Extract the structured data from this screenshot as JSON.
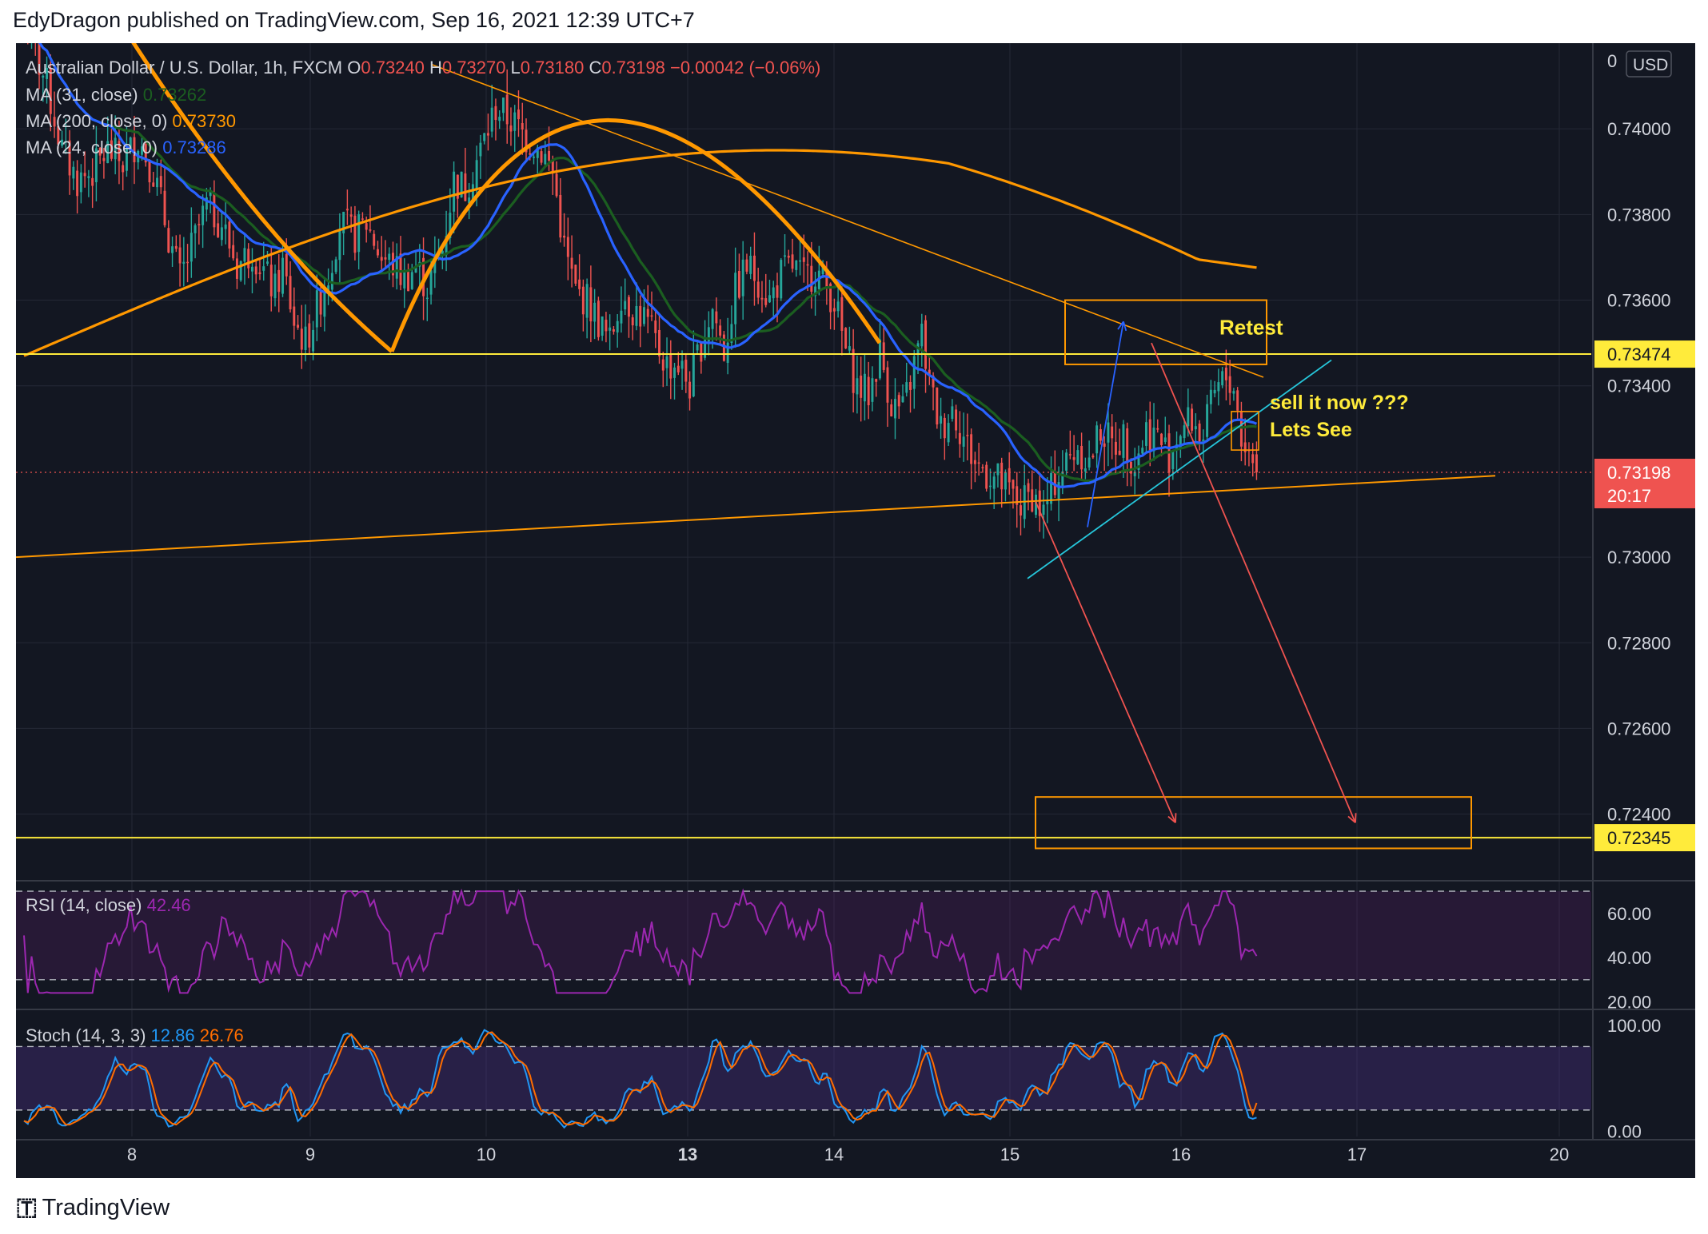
{
  "header": {
    "publisher": "EdyDragon published on TradingView.com, Sep 16, 2021 12:39 UTC+7"
  },
  "footer": {
    "brand": "TradingView",
    "logo_icon": "tradingview-logo-icon"
  },
  "legend": {
    "symbol": "Australian Dollar / U.S. Dollar, 1h, FXCM",
    "o_label": "O",
    "o_value": "0.73240",
    "h_label": "H",
    "h_value": "0.73270",
    "l_label": "L",
    "l_value": "0.73180",
    "c_label": "C",
    "c_value": "0.73198",
    "change": "−0.00042 (−0.06%)",
    "ma1_label": "MA (31, close)",
    "ma1_value": "0.73262",
    "ma2_label": "MA (200, close, 0)",
    "ma2_value": "0.73730",
    "ma3_label": "MA (24, close, 0)",
    "ma3_value": "0.73286"
  },
  "currency": "USD",
  "price_axis": {
    "ticks": [
      "0.74000",
      "0.73800",
      "0.73600",
      "0.73400",
      "0.73000",
      "0.72800",
      "0.72600",
      "0.72400"
    ],
    "tick_values": [
      0.74,
      0.738,
      0.736,
      0.734,
      0.73,
      0.728,
      0.726,
      0.724
    ],
    "top_tick": "0",
    "range": [
      0.7225,
      0.742
    ]
  },
  "badges": {
    "level_high": "0.73474",
    "level_low": "0.72345",
    "last_price": "0.73198",
    "countdown": "20:17"
  },
  "time_axis": {
    "labels": [
      "8",
      "9",
      "10",
      "13",
      "14",
      "15",
      "16",
      "17",
      "20"
    ],
    "bold": [
      "13"
    ]
  },
  "annotations": {
    "retest": "Retest",
    "sell": "sell it now ???",
    "lets_see": "Lets See"
  },
  "rsi": {
    "label": "RSI (14, close)",
    "value": "42.46",
    "ticks": [
      "60.00",
      "40.00",
      "20.00"
    ],
    "tick_values": [
      60,
      40,
      20
    ],
    "range": [
      18,
      74
    ]
  },
  "stoch": {
    "label": "Stoch (14, 3, 3)",
    "k_value": "12.86",
    "d_value": "26.76",
    "ticks": [
      "100.00",
      "0.00"
    ],
    "tick_values": [
      100,
      0
    ],
    "range": [
      -5,
      112
    ]
  },
  "colors": {
    "background": "#131722",
    "up": "#26a69a",
    "down": "#ef5350",
    "ma_fast": "#2962ff",
    "ma_mid": "#1b5e20",
    "ma_slow": "#ff9800",
    "level": "#ffeb3b",
    "rsi": "#9c27b0",
    "stoch_k": "#2196f3",
    "stoch_d": "#ff6d00",
    "annotation_text": "#ffeb3b"
  },
  "chart_data": {
    "type": "candlestick",
    "symbol": "AUDUSD",
    "timeframe": "1h",
    "close_points": [
      [
        0,
        0.7425
      ],
      [
        6,
        0.741
      ],
      [
        10,
        0.7395
      ],
      [
        14,
        0.7388
      ],
      [
        18,
        0.739
      ],
      [
        22,
        0.7395
      ],
      [
        26,
        0.7392
      ],
      [
        30,
        0.7398
      ],
      [
        34,
        0.739
      ],
      [
        38,
        0.7375
      ],
      [
        41,
        0.7365
      ],
      [
        44,
        0.7372
      ],
      [
        48,
        0.7382
      ],
      [
        52,
        0.7378
      ],
      [
        56,
        0.7368
      ],
      [
        60,
        0.7372
      ],
      [
        64,
        0.7365
      ],
      [
        66,
        0.7362
      ],
      [
        68,
        0.7368
      ],
      [
        71,
        0.7355
      ],
      [
        74,
        0.735
      ],
      [
        77,
        0.7358
      ],
      [
        80,
        0.7366
      ],
      [
        83,
        0.7378
      ],
      [
        87,
        0.7375
      ],
      [
        90,
        0.7378
      ],
      [
        94,
        0.737
      ],
      [
        97,
        0.7368
      ],
      [
        100,
        0.7365
      ],
      [
        103,
        0.7368
      ],
      [
        106,
        0.7363
      ],
      [
        110,
        0.7372
      ],
      [
        113,
        0.7388
      ],
      [
        116,
        0.7386
      ],
      [
        120,
        0.7395
      ],
      [
        124,
        0.7405
      ],
      [
        128,
        0.7402
      ],
      [
        132,
        0.7398
      ],
      [
        136,
        0.7395
      ],
      [
        139,
        0.739
      ],
      [
        142,
        0.7372
      ],
      [
        145,
        0.7362
      ],
      [
        148,
        0.736
      ],
      [
        151,
        0.7355
      ],
      [
        154,
        0.735
      ],
      [
        157,
        0.7362
      ],
      [
        160,
        0.7358
      ],
      [
        163,
        0.7356
      ],
      [
        166,
        0.735
      ],
      [
        169,
        0.7345
      ],
      [
        172,
        0.7345
      ],
      [
        175,
        0.734
      ],
      [
        178,
        0.735
      ],
      [
        181,
        0.7358
      ],
      [
        184,
        0.7348
      ],
      [
        187,
        0.7362
      ],
      [
        190,
        0.7368
      ],
      [
        193,
        0.7365
      ],
      [
        196,
        0.736
      ],
      [
        199,
        0.7366
      ],
      [
        202,
        0.7368
      ],
      [
        205,
        0.7365
      ],
      [
        208,
        0.7367
      ],
      [
        211,
        0.7363
      ],
      [
        213,
        0.736
      ],
      [
        216,
        0.7348
      ],
      [
        219,
        0.734
      ],
      [
        222,
        0.7338
      ],
      [
        225,
        0.7348
      ],
      [
        228,
        0.7336
      ],
      [
        231,
        0.7334
      ],
      [
        234,
        0.7345
      ],
      [
        236,
        0.7352
      ],
      [
        238,
        0.734
      ],
      [
        241,
        0.733
      ],
      [
        244,
        0.7335
      ],
      [
        247,
        0.7328
      ],
      [
        250,
        0.7322
      ],
      [
        253,
        0.732
      ],
      [
        256,
        0.7318
      ],
      [
        259,
        0.7315
      ],
      [
        262,
        0.7312
      ],
      [
        265,
        0.7315
      ],
      [
        268,
        0.731
      ],
      [
        271,
        0.7318
      ],
      [
        274,
        0.7322
      ],
      [
        277,
        0.7326
      ],
      [
        280,
        0.7322
      ],
      [
        283,
        0.733
      ],
      [
        286,
        0.7326
      ],
      [
        289,
        0.7328
      ],
      [
        292,
        0.7322
      ],
      [
        295,
        0.733
      ],
      [
        298,
        0.7328
      ],
      [
        301,
        0.7324
      ],
      [
        304,
        0.733
      ],
      [
        307,
        0.7332
      ],
      [
        310,
        0.7328
      ],
      [
        313,
        0.7338
      ],
      [
        316,
        0.7342
      ],
      [
        318,
        0.734
      ],
      [
        320,
        0.7328
      ],
      [
        322,
        0.7324
      ],
      [
        324,
        0.732
      ]
    ],
    "levels": [
      0.73474,
      0.72345
    ],
    "target_zone": [
      0.7232,
      0.7244
    ],
    "retest_zone": [
      0.7345,
      0.736
    ],
    "last_price": 0.73198,
    "time_labels": [
      "8",
      "9",
      "10",
      "13",
      "14",
      "15",
      "16",
      "17",
      "20"
    ]
  }
}
